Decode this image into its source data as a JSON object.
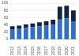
{
  "chart_data": {
    "type": "bar",
    "stacked": true,
    "grid": true,
    "categories": [
      "2012",
      "2013",
      "2014",
      "2015",
      "2016",
      "2017",
      "2018",
      "2019",
      "2020",
      "2021"
    ],
    "series": [
      {
        "color": "#2f6fc4",
        "values": [
          28,
          30,
          32,
          34,
          36,
          38,
          40,
          55,
          58,
          50
        ]
      },
      {
        "color": "#14233f",
        "values": [
          8,
          8,
          9,
          10,
          11,
          12,
          14,
          35,
          35,
          30
        ]
      }
    ],
    "ylim": [
      0,
      100
    ],
    "yticks": [
      0,
      20,
      40,
      60,
      80,
      100
    ]
  }
}
